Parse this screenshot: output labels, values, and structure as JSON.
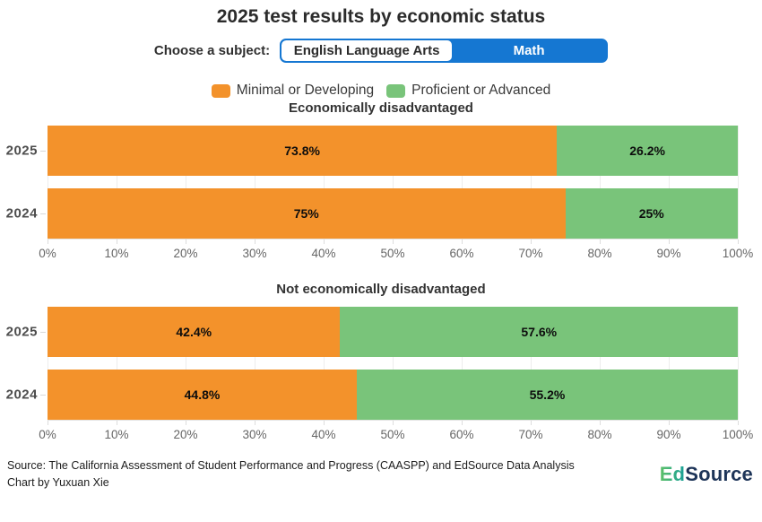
{
  "header": {
    "title": "2025 test results by economic status",
    "subject_label": "Choose a subject:",
    "subjects": [
      {
        "label": "English Language Arts",
        "selected": false
      },
      {
        "label": "Math",
        "selected": true
      }
    ]
  },
  "legend": [
    {
      "label": "Minimal or Developing",
      "color": "#F3922B"
    },
    {
      "label": "Proficient or Advanced",
      "color": "#79C47A"
    }
  ],
  "chart_data": [
    {
      "type": "bar",
      "orientation": "horizontal",
      "stacked": true,
      "title": "Economically disadvantaged",
      "categories": [
        "2025",
        "2024"
      ],
      "series": [
        {
          "name": "Minimal or Developing",
          "color": "#F3922B",
          "values": [
            73.8,
            75
          ]
        },
        {
          "name": "Proficient or Advanced",
          "color": "#79C47A",
          "values": [
            26.2,
            25
          ]
        }
      ],
      "value_labels": [
        [
          "73.8%",
          "26.2%"
        ],
        [
          "75%",
          "25%"
        ]
      ],
      "xlim": [
        0,
        100
      ],
      "x_ticks": [
        "0%",
        "10%",
        "20%",
        "30%",
        "40%",
        "50%",
        "60%",
        "70%",
        "80%",
        "90%",
        "100%"
      ],
      "grid": true,
      "legend_position": "top"
    },
    {
      "type": "bar",
      "orientation": "horizontal",
      "stacked": true,
      "title": "Not economically disadvantaged",
      "categories": [
        "2025",
        "2024"
      ],
      "series": [
        {
          "name": "Minimal or Developing",
          "color": "#F3922B",
          "values": [
            42.4,
            44.8
          ]
        },
        {
          "name": "Proficient or Advanced",
          "color": "#79C47A",
          "values": [
            57.6,
            55.2
          ]
        }
      ],
      "value_labels": [
        [
          "42.4%",
          "57.6%"
        ],
        [
          "44.8%",
          "55.2%"
        ]
      ],
      "xlim": [
        0,
        100
      ],
      "x_ticks": [
        "0%",
        "10%",
        "20%",
        "30%",
        "40%",
        "50%",
        "60%",
        "70%",
        "80%",
        "90%",
        "100%"
      ],
      "grid": true,
      "legend_position": "top"
    }
  ],
  "footer": {
    "source_line1": "Source: The California Assessment of Student Performance and Progress (CAASPP) and EdSource Data Analysis",
    "source_line2": "Chart by Yuxuan Xie",
    "logo": {
      "ed": "Ed",
      "source": "Source"
    }
  },
  "colors": {
    "accent_blue": "#1577D2",
    "bar_orange": "#F3922B",
    "bar_green": "#79C47A",
    "logo_green": "#5fc168",
    "logo_teal": "#169f97",
    "logo_navy": "#1d3458"
  }
}
